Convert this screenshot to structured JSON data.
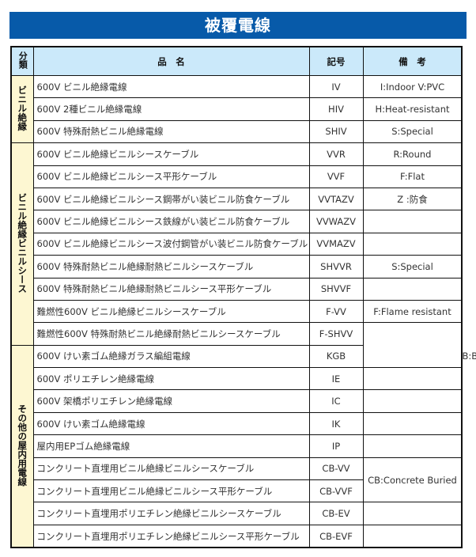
{
  "title": "被覆電線",
  "headers": {
    "category": "分類",
    "name": "品　名",
    "code": "記号",
    "remarks": "備　考"
  },
  "groups": [
    {
      "category": "ビニル絶縁",
      "rows": [
        {
          "name": "600V ビニル絶縁電線",
          "code": "IV",
          "remark": "I:Indoor V:PVC"
        },
        {
          "name": "600V 2種ビニル絶縁電線",
          "code": "HIV",
          "remark": "H:Heat-resistant"
        },
        {
          "name": "600V 特殊耐熱ビニル絶縁電線",
          "code": "SHIV",
          "remark": "S:Special"
        }
      ]
    },
    {
      "category": "ビニル絶縁ビニルシース",
      "rows": [
        {
          "name": "600V ビニル絶縁ビニルシースケーブル",
          "code": "VVR",
          "remark": "R:Round"
        },
        {
          "name": "600V ビニル絶縁ビニルシース平形ケーブル",
          "code": "VVF",
          "remark": "F:Flat"
        },
        {
          "name": "600V ビニル絶縁ビニルシース鋼帯がい装ビニル防食ケーブル",
          "code": "VVTAZV",
          "remark": "Z :防食"
        },
        {
          "name": "600V ビニル絶縁ビニルシース鉄線がい装ビニル防食ケーブル",
          "code": "VVWAZV",
          "remark": ""
        },
        {
          "name": "600V ビニル絶縁ビニルシース波付鋼管がい装ビニル防食ケーブル",
          "code": "VVMAZV",
          "remark": ""
        },
        {
          "name": "600V 特殊耐熱ビニル絶縁耐熱ビニルシースケーブル",
          "code": "SHVVR",
          "remark": "S:Special"
        },
        {
          "name": "600V 特殊耐熱ビニル絶縁耐熱ビニルシース平形ケーブル",
          "code": "SHVVF",
          "remark": ""
        },
        {
          "name": "難燃性600V ビニル絶縁ビニルシースケーブル",
          "code": "F-VV",
          "remark": "F:Flame resistant"
        },
        {
          "name": "難燃性600V 特殊耐熱ビニル絶縁耐熱ビニルシースケーブル",
          "code": "F-SHVV"
        }
      ]
    },
    {
      "category": "その他の屋内用電線",
      "rows": [
        {
          "name": "600V けい素ゴム絶縁ガラス編組電線",
          "code": "KGB",
          "remark": "B:Braid"
        },
        {
          "name": "600V ポリエチレン絶縁電線",
          "code": "IE",
          "remark": ""
        },
        {
          "name": "600V 架橋ポリエチレン絶縁電線",
          "code": "IC",
          "remark": ""
        },
        {
          "name": "600V けい素ゴム絶縁電線",
          "code": "IK",
          "remark": ""
        },
        {
          "name": "屋内用EPゴム絶縁電線",
          "code": "IP",
          "remark": ""
        },
        {
          "name": "コンクリート直埋用ビニル絶縁ビニルシースケーブル",
          "code": "CB-VV",
          "remark": "CB:Concrete Buried"
        },
        {
          "name": "コンクリート直埋用ビニル絶縁ビニルシース平形ケーブル",
          "code": "CB-VVF"
        },
        {
          "name": "コンクリート直埋用ポリエチレン絶縁ビニルシースケーブル",
          "code": "CB-EV",
          "remark": ""
        },
        {
          "name": "コンクリート直埋用ポリエチレン絶縁ビニルシース平形ケーブル",
          "code": "CB-EVF",
          "remark": ""
        }
      ]
    }
  ]
}
